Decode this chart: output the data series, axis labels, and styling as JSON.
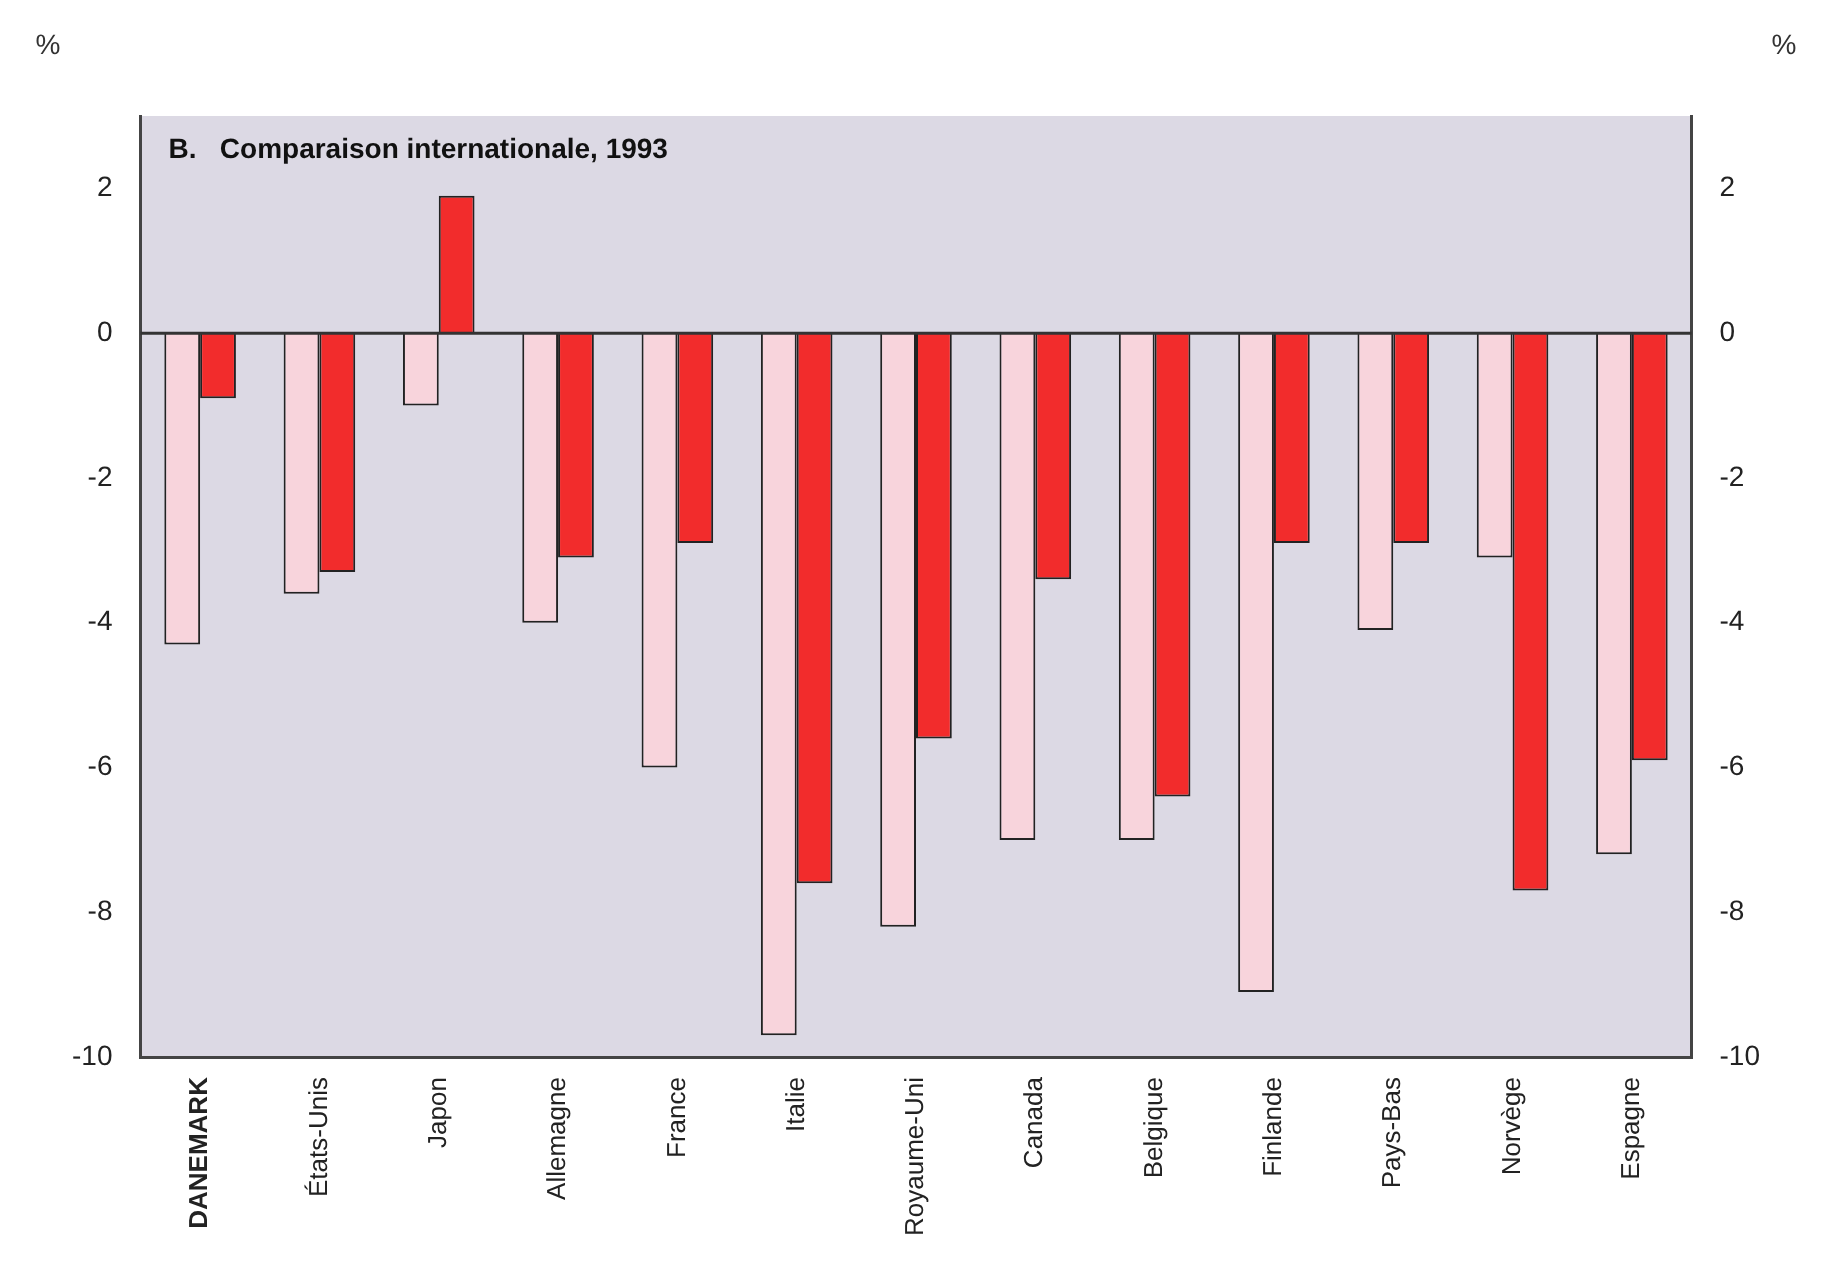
{
  "chart_data": {
    "type": "bar",
    "title": "B.   Comparaison internationale, 1993",
    "ylabel": "%",
    "y2label": "%",
    "categories": [
      "DANEMARK",
      "États-Unis",
      "Japon",
      "Allemagne",
      "France",
      "Italie",
      "Royaume-Uni",
      "Canada",
      "Belgique",
      "Finlande",
      "Pays-Bas",
      "Norvège",
      "Espagne"
    ],
    "series": [
      {
        "color": "#f8d4dc",
        "values": [
          -4.3,
          -3.6,
          -1.0,
          -4.0,
          -6.0,
          -9.7,
          -8.2,
          -7.0,
          -7.0,
          -9.1,
          -4.1,
          -3.1,
          -7.2
        ]
      },
      {
        "color": "#f22c2c",
        "values": [
          -0.9,
          -3.3,
          1.9,
          -3.1,
          -2.9,
          -7.6,
          -5.6,
          -3.4,
          -6.4,
          -2.9,
          -2.9,
          -7.7,
          -5.9
        ]
      }
    ],
    "ylim": [
      -10,
      3
    ],
    "yticks": [
      -10,
      -8,
      -6,
      -4,
      -2,
      0,
      2
    ],
    "y2lim": [
      -10,
      3
    ],
    "y2ticks": [
      -10,
      -8,
      -6,
      -4,
      -2,
      0,
      2
    ],
    "ref_lines": [
      {
        "axis": "y",
        "value": 0,
        "color": "#333333"
      }
    ],
    "grid": false,
    "legend": false
  }
}
